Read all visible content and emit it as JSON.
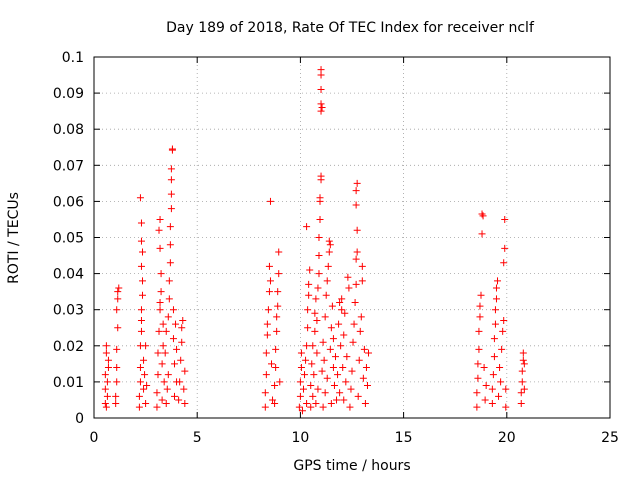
{
  "chart_data": {
    "type": "scatter",
    "title": "Day 189 of 2018, Rate Of TEC Index for receiver nclf",
    "xlabel": "GPS time / hours",
    "ylabel": "ROTI / TECUs",
    "xlim": [
      0,
      25
    ],
    "ylim": [
      0,
      0.1
    ],
    "xticks": [
      0,
      5,
      10,
      15,
      20,
      25
    ],
    "xtick_labels": [
      "0",
      "5",
      "10",
      "15",
      "20",
      "25"
    ],
    "yticks": [
      0,
      0.01,
      0.02,
      0.03,
      0.04,
      0.05,
      0.06,
      0.07,
      0.08,
      0.09,
      0.1
    ],
    "ytick_labels": [
      "0",
      "0.01",
      "0.02",
      "0.03",
      "0.04",
      "0.05",
      "0.06",
      "0.07",
      "0.08",
      "0.09",
      "0.1"
    ],
    "grid": true,
    "marker": "+",
    "marker_color": "#ff0000",
    "series": [
      {
        "name": "ROTI",
        "points": [
          [
            0.55,
            0.004
          ],
          [
            0.55,
            0.008
          ],
          [
            0.55,
            0.012
          ],
          [
            0.6,
            0.018
          ],
          [
            0.6,
            0.02
          ],
          [
            0.6,
            0.003
          ],
          [
            0.65,
            0.006
          ],
          [
            0.65,
            0.01
          ],
          [
            0.7,
            0.014
          ],
          [
            0.7,
            0.016
          ],
          [
            1.05,
            0.004
          ],
          [
            1.05,
            0.006
          ],
          [
            1.1,
            0.01
          ],
          [
            1.1,
            0.014
          ],
          [
            1.1,
            0.019
          ],
          [
            1.15,
            0.025
          ],
          [
            1.1,
            0.03
          ],
          [
            1.15,
            0.033
          ],
          [
            1.15,
            0.035
          ],
          [
            1.2,
            0.036
          ],
          [
            2.2,
            0.003
          ],
          [
            2.2,
            0.006
          ],
          [
            2.25,
            0.01
          ],
          [
            2.25,
            0.014
          ],
          [
            2.25,
            0.02
          ],
          [
            2.3,
            0.024
          ],
          [
            2.3,
            0.027
          ],
          [
            2.3,
            0.03
          ],
          [
            2.35,
            0.034
          ],
          [
            2.35,
            0.038
          ],
          [
            2.3,
            0.042
          ],
          [
            2.35,
            0.046
          ],
          [
            2.3,
            0.049
          ],
          [
            2.3,
            0.054
          ],
          [
            2.25,
            0.061
          ],
          [
            2.4,
            0.016
          ],
          [
            2.4,
            0.008
          ],
          [
            2.45,
            0.012
          ],
          [
            2.5,
            0.004
          ],
          [
            2.5,
            0.02
          ],
          [
            2.55,
            0.009
          ],
          [
            3.05,
            0.003
          ],
          [
            3.05,
            0.007
          ],
          [
            3.1,
            0.012
          ],
          [
            3.1,
            0.018
          ],
          [
            3.15,
            0.024
          ],
          [
            3.2,
            0.03
          ],
          [
            3.2,
            0.032
          ],
          [
            3.25,
            0.035
          ],
          [
            3.25,
            0.04
          ],
          [
            3.2,
            0.047
          ],
          [
            3.15,
            0.052
          ],
          [
            3.2,
            0.055
          ],
          [
            3.3,
            0.005
          ],
          [
            3.3,
            0.015
          ],
          [
            3.35,
            0.02
          ],
          [
            3.35,
            0.026
          ],
          [
            3.4,
            0.01
          ],
          [
            3.45,
            0.018
          ],
          [
            3.5,
            0.004
          ],
          [
            3.5,
            0.024
          ],
          [
            3.55,
            0.008
          ],
          [
            3.6,
            0.012
          ],
          [
            3.6,
            0.028
          ],
          [
            3.65,
            0.033
          ],
          [
            3.65,
            0.038
          ],
          [
            3.7,
            0.043
          ],
          [
            3.7,
            0.048
          ],
          [
            3.7,
            0.053
          ],
          [
            3.75,
            0.058
          ],
          [
            3.75,
            0.062
          ],
          [
            3.75,
            0.066
          ],
          [
            3.75,
            0.069
          ],
          [
            3.8,
            0.0745
          ],
          [
            3.8,
            0.0742
          ],
          [
            3.85,
            0.03
          ],
          [
            3.85,
            0.022
          ],
          [
            3.9,
            0.015
          ],
          [
            3.9,
            0.006
          ],
          [
            3.95,
            0.026
          ],
          [
            4.0,
            0.01
          ],
          [
            4.0,
            0.019
          ],
          [
            4.1,
            0.005
          ],
          [
            4.15,
            0.01
          ],
          [
            4.2,
            0.016
          ],
          [
            4.25,
            0.021
          ],
          [
            4.25,
            0.025
          ],
          [
            4.3,
            0.027
          ],
          [
            4.35,
            0.008
          ],
          [
            4.4,
            0.004
          ],
          [
            4.4,
            0.013
          ],
          [
            8.3,
            0.003
          ],
          [
            8.3,
            0.007
          ],
          [
            8.35,
            0.012
          ],
          [
            8.35,
            0.018
          ],
          [
            8.4,
            0.023
          ],
          [
            8.4,
            0.026
          ],
          [
            8.45,
            0.03
          ],
          [
            8.5,
            0.035
          ],
          [
            8.5,
            0.042
          ],
          [
            8.55,
            0.06
          ],
          [
            8.55,
            0.038
          ],
          [
            8.6,
            0.015
          ],
          [
            8.65,
            0.005
          ],
          [
            8.75,
            0.004
          ],
          [
            8.75,
            0.009
          ],
          [
            8.8,
            0.014
          ],
          [
            8.8,
            0.019
          ],
          [
            8.85,
            0.024
          ],
          [
            8.85,
            0.028
          ],
          [
            8.9,
            0.031
          ],
          [
            8.9,
            0.035
          ],
          [
            8.95,
            0.04
          ],
          [
            8.95,
            0.046
          ],
          [
            9.0,
            0.01
          ],
          [
            9.95,
            0.003
          ],
          [
            10.0,
            0.006
          ],
          [
            10.0,
            0.01
          ],
          [
            10.05,
            0.014
          ],
          [
            10.05,
            0.018
          ],
          [
            10.1,
            0.002
          ],
          [
            10.15,
            0.008
          ],
          [
            10.2,
            0.012
          ],
          [
            10.25,
            0.016
          ],
          [
            10.3,
            0.004
          ],
          [
            10.3,
            0.02
          ],
          [
            10.35,
            0.025
          ],
          [
            10.35,
            0.03
          ],
          [
            10.4,
            0.034
          ],
          [
            10.4,
            0.037
          ],
          [
            10.45,
            0.041
          ],
          [
            10.3,
            0.053
          ],
          [
            10.5,
            0.003
          ],
          [
            10.5,
            0.009
          ],
          [
            10.55,
            0.015
          ],
          [
            10.6,
            0.006
          ],
          [
            10.6,
            0.02
          ],
          [
            10.65,
            0.012
          ],
          [
            10.7,
            0.024
          ],
          [
            10.7,
            0.029
          ],
          [
            10.75,
            0.033
          ],
          [
            10.75,
            0.004
          ],
          [
            10.8,
            0.018
          ],
          [
            10.8,
            0.027
          ],
          [
            10.85,
            0.008
          ],
          [
            10.85,
            0.036
          ],
          [
            10.9,
            0.04
          ],
          [
            10.9,
            0.045
          ],
          [
            10.9,
            0.05
          ],
          [
            10.95,
            0.055
          ],
          [
            10.95,
            0.06
          ],
          [
            10.95,
            0.061
          ],
          [
            11.0,
            0.066
          ],
          [
            11.0,
            0.067
          ],
          [
            11.0,
            0.085
          ],
          [
            11.0,
            0.087
          ],
          [
            11.05,
            0.086
          ],
          [
            11.0,
            0.091
          ],
          [
            11.0,
            0.095
          ],
          [
            11.0,
            0.0965
          ],
          [
            11.05,
            0.013
          ],
          [
            11.1,
            0.021
          ],
          [
            11.1,
            0.003
          ],
          [
            11.15,
            0.016
          ],
          [
            11.2,
            0.028
          ],
          [
            11.2,
            0.007
          ],
          [
            11.25,
            0.034
          ],
          [
            11.3,
            0.038
          ],
          [
            11.3,
            0.011
          ],
          [
            11.35,
            0.042
          ],
          [
            11.4,
            0.046
          ],
          [
            11.4,
            0.049
          ],
          [
            11.45,
            0.048
          ],
          [
            11.45,
            0.019
          ],
          [
            11.5,
            0.025
          ],
          [
            11.5,
            0.004
          ],
          [
            11.55,
            0.031
          ],
          [
            11.6,
            0.014
          ],
          [
            11.6,
            0.022
          ],
          [
            11.65,
            0.009
          ],
          [
            11.7,
            0.017
          ],
          [
            11.75,
            0.005
          ],
          [
            11.8,
            0.012
          ],
          [
            11.85,
            0.026
          ],
          [
            11.9,
            0.032
          ],
          [
            11.9,
            0.007
          ],
          [
            11.95,
            0.02
          ],
          [
            12.0,
            0.03
          ],
          [
            12.0,
            0.033
          ],
          [
            12.05,
            0.014
          ],
          [
            12.1,
            0.005
          ],
          [
            12.1,
            0.023
          ],
          [
            12.15,
            0.029
          ],
          [
            12.2,
            0.01
          ],
          [
            12.25,
            0.017
          ],
          [
            12.3,
            0.039
          ],
          [
            12.35,
            0.036
          ],
          [
            12.4,
            0.003
          ],
          [
            12.45,
            0.008
          ],
          [
            12.5,
            0.013
          ],
          [
            12.55,
            0.021
          ],
          [
            12.6,
            0.026
          ],
          [
            12.65,
            0.032
          ],
          [
            12.7,
            0.037
          ],
          [
            12.7,
            0.044
          ],
          [
            12.75,
            0.046
          ],
          [
            12.75,
            0.052
          ],
          [
            12.7,
            0.059
          ],
          [
            12.7,
            0.063
          ],
          [
            12.75,
            0.065
          ],
          [
            12.8,
            0.006
          ],
          [
            12.85,
            0.016
          ],
          [
            12.9,
            0.024
          ],
          [
            12.95,
            0.028
          ],
          [
            13.0,
            0.042
          ],
          [
            13.0,
            0.038
          ],
          [
            13.05,
            0.011
          ],
          [
            13.1,
            0.019
          ],
          [
            13.15,
            0.004
          ],
          [
            13.2,
            0.014
          ],
          [
            13.25,
            0.009
          ],
          [
            13.3,
            0.018
          ],
          [
            18.55,
            0.003
          ],
          [
            18.55,
            0.007
          ],
          [
            18.6,
            0.011
          ],
          [
            18.6,
            0.015
          ],
          [
            18.65,
            0.019
          ],
          [
            18.65,
            0.024
          ],
          [
            18.7,
            0.028
          ],
          [
            18.7,
            0.031
          ],
          [
            18.75,
            0.034
          ],
          [
            18.8,
            0.0565
          ],
          [
            18.85,
            0.056
          ],
          [
            18.8,
            0.051
          ],
          [
            18.9,
            0.014
          ],
          [
            18.95,
            0.005
          ],
          [
            19.0,
            0.009
          ],
          [
            19.3,
            0.004
          ],
          [
            19.3,
            0.008
          ],
          [
            19.35,
            0.012
          ],
          [
            19.4,
            0.017
          ],
          [
            19.4,
            0.022
          ],
          [
            19.45,
            0.026
          ],
          [
            19.45,
            0.03
          ],
          [
            19.5,
            0.033
          ],
          [
            19.5,
            0.036
          ],
          [
            19.55,
            0.038
          ],
          [
            19.6,
            0.006
          ],
          [
            19.65,
            0.014
          ],
          [
            19.7,
            0.01
          ],
          [
            19.75,
            0.019
          ],
          [
            19.8,
            0.024
          ],
          [
            19.85,
            0.027
          ],
          [
            19.85,
            0.043
          ],
          [
            19.9,
            0.047
          ],
          [
            19.9,
            0.055
          ],
          [
            19.95,
            0.008
          ],
          [
            19.95,
            0.003
          ],
          [
            20.7,
            0.004
          ],
          [
            20.7,
            0.007
          ],
          [
            20.75,
            0.01
          ],
          [
            20.75,
            0.013
          ],
          [
            20.8,
            0.016
          ],
          [
            20.8,
            0.018
          ],
          [
            20.85,
            0.015
          ],
          [
            20.85,
            0.008
          ]
        ]
      }
    ]
  }
}
